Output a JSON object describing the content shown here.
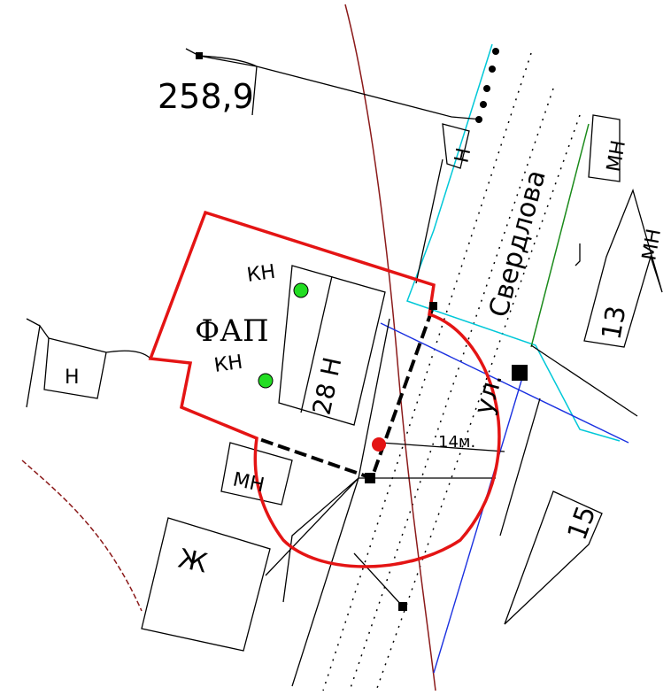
{
  "labels": {
    "height_mark": "258,9",
    "fap": "ФАП",
    "kn_1": "КН",
    "kn_2": "КН",
    "building_28": "28 Н",
    "street_prefix": "ул.",
    "street_name": "Свердлова",
    "distance": "14м.",
    "house_13": "13",
    "house_15": "15",
    "n_left": "Н",
    "n_top": "Н",
    "mn_bottom": "МН",
    "mn_top_right": "МН",
    "mn_right": "МН",
    "zh": "Ж"
  }
}
